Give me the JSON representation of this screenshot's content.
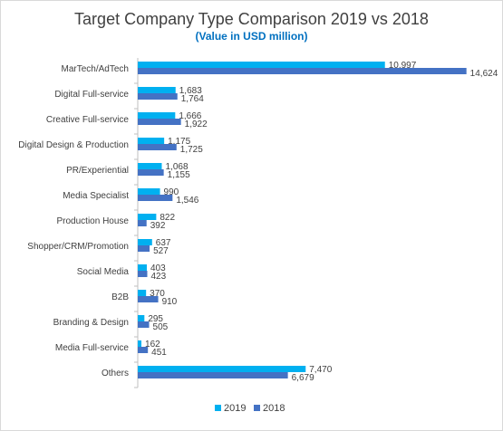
{
  "chart_data": {
    "type": "bar",
    "orientation": "horizontal",
    "title": "Target Company Type Comparison 2019 vs 2018",
    "subtitle": "(Value in USD million)",
    "xlabel": "",
    "ylabel": "",
    "xlim": [
      0,
      16000
    ],
    "grid": false,
    "legend_position": "bottom",
    "categories": [
      "MarTech/AdTech",
      "Digital Full-service",
      "Creative Full-service",
      "Digital Design & Production",
      "PR/Experiential",
      "Media Specialist",
      "Production House",
      "Shopper/CRM/Promotion",
      "Social Media",
      "B2B",
      "Branding & Design",
      "Media Full-service",
      "Others"
    ],
    "series": [
      {
        "name": "2019",
        "color": "#00b0f0",
        "values": [
          10997,
          1683,
          1666,
          1175,
          1068,
          990,
          822,
          637,
          403,
          370,
          295,
          162,
          7470
        ],
        "labels": [
          "10,997",
          "1,683",
          "1,666",
          "1,175",
          "1,068",
          "990",
          "822",
          "637",
          "403",
          "370",
          "295",
          "162",
          "7,470"
        ]
      },
      {
        "name": "2018",
        "color": "#4472c4",
        "values": [
          14624,
          1764,
          1922,
          1725,
          1155,
          1546,
          392,
          527,
          423,
          910,
          505,
          451,
          6679
        ],
        "labels": [
          "14,624",
          "1,764",
          "1,922",
          "1,725",
          "1,155",
          "1,546",
          "392",
          "527",
          "423",
          "910",
          "505",
          "451",
          "6,679"
        ]
      }
    ]
  },
  "colors": {
    "title": "#404040",
    "subtitle": "#0070c0",
    "axis": "#bfbfbf",
    "text": "#404040"
  }
}
